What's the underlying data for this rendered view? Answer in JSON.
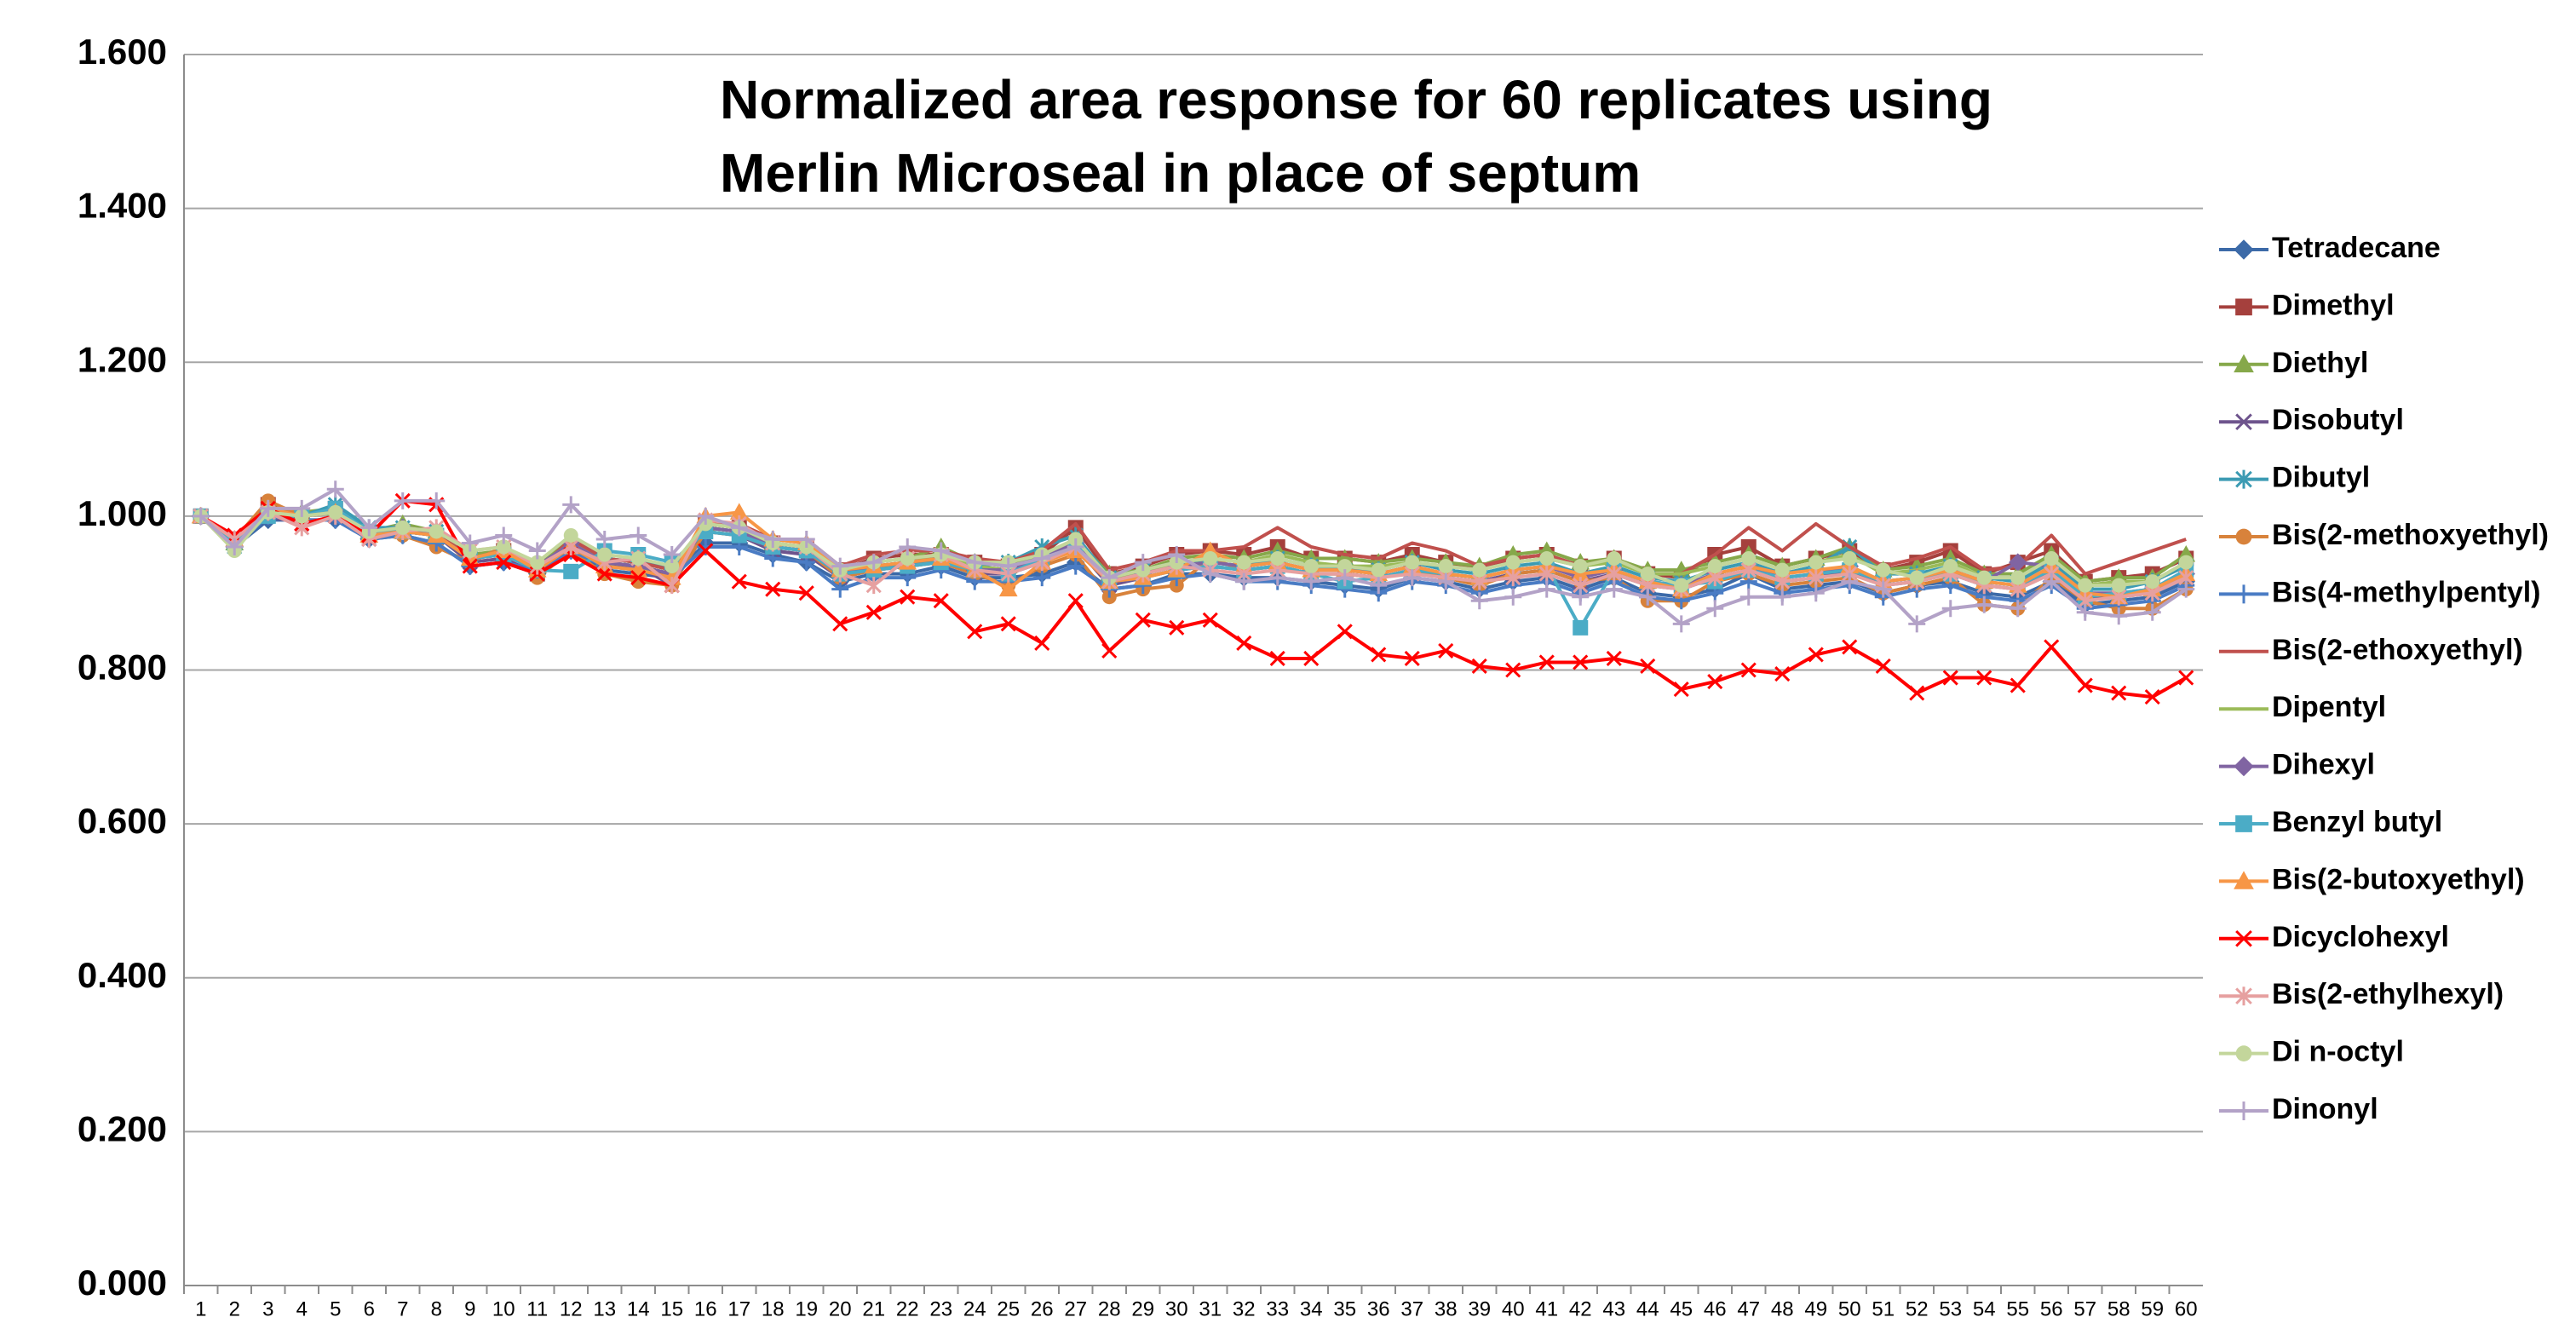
{
  "chart_data": {
    "type": "line",
    "title": [
      "Normalized area response for 60 replicates using",
      "Merlin Microseal in place of septum"
    ],
    "categories": [
      "1",
      "2",
      "3",
      "4",
      "5",
      "6",
      "7",
      "8",
      "9",
      "10",
      "11",
      "12",
      "13",
      "14",
      "15",
      "16",
      "17",
      "18",
      "19",
      "20",
      "21",
      "22",
      "23",
      "24",
      "25",
      "26",
      "27",
      "28",
      "29",
      "30",
      "31",
      "32",
      "33",
      "34",
      "35",
      "36",
      "37",
      "38",
      "39",
      "40",
      "41",
      "42",
      "43",
      "44",
      "45",
      "46",
      "47",
      "48",
      "49",
      "50",
      "51",
      "52",
      "53",
      "54",
      "55",
      "56",
      "57",
      "58",
      "59",
      "60"
    ],
    "ylim": [
      0,
      1.6
    ],
    "yticks": [
      {
        "value": 0,
        "label": "0.000"
      },
      {
        "value": 0.2,
        "label": "0.200"
      },
      {
        "value": 0.4,
        "label": "0.400"
      },
      {
        "value": 0.6,
        "label": "0.600"
      },
      {
        "value": 0.8,
        "label": "0.800"
      },
      {
        "value": 1.0,
        "label": "1.000"
      },
      {
        "value": 1.2,
        "label": "1.200"
      },
      {
        "value": 1.4,
        "label": "1.400"
      },
      {
        "value": 1.6,
        "label": "1.600"
      }
    ],
    "grid": true,
    "legend": "right",
    "series": [
      {
        "name": "Tetradecane",
        "color": "#3c6aa8",
        "marker": "diamond",
        "values": [
          1.0,
          0.96,
          0.995,
          0.995,
          0.995,
          0.97,
          0.975,
          0.965,
          0.935,
          0.94,
          0.925,
          0.955,
          0.93,
          0.925,
          0.92,
          0.965,
          0.965,
          0.95,
          0.94,
          0.915,
          0.925,
          0.925,
          0.935,
          0.92,
          0.92,
          0.925,
          0.94,
          0.905,
          0.91,
          0.925,
          0.925,
          0.92,
          0.92,
          0.915,
          0.91,
          0.905,
          0.92,
          0.915,
          0.905,
          0.915,
          0.92,
          0.905,
          0.92,
          0.9,
          0.895,
          0.905,
          0.925,
          0.905,
          0.91,
          0.915,
          0.9,
          0.91,
          0.915,
          0.9,
          0.895,
          0.915,
          0.885,
          0.89,
          0.895,
          0.915
        ]
      },
      {
        "name": "Dimethyl",
        "color": "#a5403d",
        "marker": "square",
        "values": [
          1.0,
          0.97,
          1.015,
          1.0,
          1.01,
          0.975,
          0.98,
          0.975,
          0.945,
          0.955,
          0.925,
          0.96,
          0.94,
          0.935,
          0.92,
          0.99,
          0.985,
          0.965,
          0.96,
          0.93,
          0.945,
          0.95,
          0.95,
          0.94,
          0.935,
          0.95,
          0.985,
          0.925,
          0.935,
          0.95,
          0.955,
          0.95,
          0.96,
          0.945,
          0.945,
          0.94,
          0.95,
          0.94,
          0.93,
          0.945,
          0.95,
          0.935,
          0.945,
          0.925,
          0.92,
          0.95,
          0.96,
          0.935,
          0.945,
          0.955,
          0.93,
          0.94,
          0.955,
          0.925,
          0.94,
          0.955,
          0.915,
          0.92,
          0.925,
          0.945
        ]
      },
      {
        "name": "Diethyl",
        "color": "#86a84a",
        "marker": "triangle",
        "values": [
          1.0,
          0.965,
          1.01,
          1.005,
          1.01,
          0.98,
          0.99,
          0.98,
          0.95,
          0.955,
          0.935,
          0.97,
          0.945,
          0.94,
          0.93,
          0.99,
          0.985,
          0.965,
          0.96,
          0.93,
          0.94,
          0.945,
          0.96,
          0.94,
          0.935,
          0.95,
          0.97,
          0.925,
          0.93,
          0.945,
          0.95,
          0.945,
          0.955,
          0.945,
          0.945,
          0.94,
          0.945,
          0.94,
          0.935,
          0.95,
          0.955,
          0.94,
          0.945,
          0.93,
          0.93,
          0.94,
          0.95,
          0.935,
          0.945,
          0.96,
          0.93,
          0.935,
          0.945,
          0.925,
          0.925,
          0.95,
          0.915,
          0.92,
          0.92,
          0.95
        ]
      },
      {
        "name": "Disobutyl",
        "color": "#6e548d",
        "marker": "x",
        "values": [
          1.0,
          0.965,
          1.0,
          0.99,
          1.0,
          0.97,
          0.98,
          0.975,
          0.94,
          0.945,
          0.925,
          0.96,
          0.935,
          0.935,
          0.91,
          0.98,
          0.975,
          0.955,
          0.95,
          0.92,
          0.93,
          0.935,
          0.94,
          0.925,
          0.925,
          0.94,
          0.96,
          0.91,
          0.92,
          0.93,
          0.935,
          0.93,
          0.935,
          0.925,
          0.925,
          0.92,
          0.93,
          0.92,
          0.915,
          0.925,
          0.93,
          0.915,
          0.925,
          0.91,
          0.905,
          0.92,
          0.93,
          0.915,
          0.92,
          0.93,
          0.91,
          0.915,
          0.925,
          0.91,
          0.905,
          0.93,
          0.895,
          0.895,
          0.9,
          0.92
        ]
      },
      {
        "name": "Dibutyl",
        "color": "#3c9bb3",
        "marker": "star",
        "values": [
          1.0,
          0.96,
          1.005,
          1.0,
          1.015,
          0.985,
          0.985,
          0.98,
          0.945,
          0.95,
          0.935,
          0.96,
          0.945,
          0.94,
          0.935,
          0.985,
          0.98,
          0.96,
          0.955,
          0.925,
          0.935,
          0.935,
          0.945,
          0.935,
          0.94,
          0.96,
          0.975,
          0.92,
          0.93,
          0.94,
          0.94,
          0.935,
          0.945,
          0.935,
          0.93,
          0.93,
          0.94,
          0.93,
          0.925,
          0.935,
          0.94,
          0.925,
          0.935,
          0.92,
          0.915,
          0.93,
          0.94,
          0.925,
          0.935,
          0.96,
          0.925,
          0.925,
          0.935,
          0.92,
          0.915,
          0.94,
          0.905,
          0.905,
          0.915,
          0.935
        ]
      },
      {
        "name": "Bis(2-methoxyethyl)",
        "color": "#d8823b",
        "marker": "circle",
        "values": [
          1.0,
          0.97,
          1.02,
          1.0,
          1.005,
          0.975,
          0.975,
          0.96,
          0.94,
          0.96,
          0.92,
          0.955,
          0.925,
          0.915,
          0.91,
          0.98,
          0.975,
          0.96,
          0.955,
          0.92,
          0.93,
          0.935,
          0.94,
          0.925,
          0.91,
          0.935,
          0.95,
          0.895,
          0.905,
          0.91,
          0.945,
          0.93,
          0.935,
          0.925,
          0.925,
          0.92,
          0.93,
          0.92,
          0.91,
          0.925,
          0.93,
          0.915,
          0.92,
          0.89,
          0.89,
          0.915,
          0.925,
          0.91,
          0.915,
          0.92,
          0.9,
          0.91,
          0.92,
          0.885,
          0.88,
          0.92,
          0.89,
          0.88,
          0.88,
          0.905
        ]
      },
      {
        "name": "Bis(4-methylpentyl)",
        "color": "#4a7cc4",
        "marker": "plus",
        "values": [
          1.0,
          0.96,
          1.0,
          0.995,
          0.995,
          0.97,
          0.975,
          0.965,
          0.935,
          0.94,
          0.93,
          0.955,
          0.935,
          0.93,
          0.92,
          0.96,
          0.96,
          0.945,
          0.94,
          0.905,
          0.92,
          0.92,
          0.93,
          0.915,
          0.915,
          0.92,
          0.935,
          0.905,
          0.91,
          0.92,
          0.925,
          0.915,
          0.915,
          0.91,
          0.905,
          0.9,
          0.915,
          0.91,
          0.9,
          0.91,
          0.915,
          0.9,
          0.915,
          0.895,
          0.89,
          0.9,
          0.915,
          0.9,
          0.905,
          0.91,
          0.895,
          0.905,
          0.91,
          0.895,
          0.89,
          0.91,
          0.88,
          0.885,
          0.89,
          0.91
        ]
      },
      {
        "name": "Bis(2-ethoxyethyl)",
        "color": "#c0504d",
        "marker": "none",
        "values": [
          1.0,
          0.97,
          1.01,
          1.0,
          1.005,
          0.975,
          0.985,
          0.98,
          0.945,
          0.955,
          0.93,
          0.97,
          0.945,
          0.94,
          0.93,
          0.99,
          0.99,
          0.97,
          0.97,
          0.935,
          0.95,
          0.955,
          0.955,
          0.945,
          0.94,
          0.955,
          0.99,
          0.93,
          0.94,
          0.955,
          0.955,
          0.96,
          0.985,
          0.96,
          0.95,
          0.945,
          0.965,
          0.955,
          0.935,
          0.945,
          0.95,
          0.935,
          0.945,
          0.925,
          0.925,
          0.95,
          0.985,
          0.955,
          0.99,
          0.96,
          0.935,
          0.945,
          0.96,
          0.93,
          0.935,
          0.975,
          0.925,
          0.94,
          0.955,
          0.97
        ]
      },
      {
        "name": "Dipentyl",
        "color": "#9bbb59",
        "marker": "none",
        "values": [
          1.0,
          0.965,
          1.005,
          1.0,
          1.005,
          0.975,
          0.985,
          0.975,
          0.945,
          0.95,
          0.935,
          0.965,
          0.94,
          0.935,
          0.925,
          0.985,
          0.98,
          0.96,
          0.955,
          0.925,
          0.935,
          0.94,
          0.95,
          0.935,
          0.93,
          0.945,
          0.965,
          0.92,
          0.925,
          0.94,
          0.945,
          0.94,
          0.95,
          0.94,
          0.935,
          0.935,
          0.94,
          0.935,
          0.93,
          0.94,
          0.945,
          0.935,
          0.94,
          0.925,
          0.925,
          0.935,
          0.945,
          0.93,
          0.94,
          0.95,
          0.925,
          0.93,
          0.94,
          0.92,
          0.92,
          0.945,
          0.91,
          0.915,
          0.915,
          0.94
        ]
      },
      {
        "name": "Dihexyl",
        "color": "#8064a2",
        "marker": "diamond",
        "values": [
          1.0,
          0.965,
          1.005,
          1.0,
          1.005,
          0.975,
          0.985,
          0.975,
          0.945,
          0.95,
          0.935,
          0.965,
          0.94,
          0.935,
          0.925,
          0.985,
          0.98,
          0.96,
          0.955,
          0.925,
          0.935,
          0.94,
          0.945,
          0.93,
          0.93,
          0.945,
          0.965,
          0.915,
          0.925,
          0.935,
          0.94,
          0.935,
          0.94,
          0.93,
          0.93,
          0.925,
          0.935,
          0.925,
          0.92,
          0.93,
          0.935,
          0.92,
          0.93,
          0.915,
          0.91,
          0.925,
          0.935,
          0.92,
          0.925,
          0.935,
          0.915,
          0.92,
          0.93,
          0.915,
          0.94,
          0.935,
          0.9,
          0.9,
          0.905,
          0.925
        ]
      },
      {
        "name": "Benzyl butyl",
        "color": "#4bacc6",
        "marker": "square",
        "values": [
          1.0,
          0.965,
          1.0,
          1.0,
          1.01,
          0.98,
          0.98,
          0.975,
          0.945,
          0.95,
          0.93,
          0.928,
          0.955,
          0.95,
          0.94,
          0.98,
          0.975,
          0.96,
          0.955,
          0.925,
          0.93,
          0.935,
          0.94,
          0.93,
          0.925,
          0.945,
          0.96,
          0.915,
          0.92,
          0.93,
          0.935,
          0.93,
          0.935,
          0.925,
          0.915,
          0.92,
          0.93,
          0.925,
          0.92,
          0.93,
          0.935,
          0.855,
          0.93,
          0.915,
          0.91,
          0.915,
          0.93,
          0.92,
          0.925,
          0.93,
          0.915,
          0.92,
          0.925,
          0.915,
          0.91,
          0.93,
          0.895,
          0.9,
          0.905,
          0.93
        ]
      },
      {
        "name": "Bis(2-butoxyethyl)",
        "color": "#f79646",
        "marker": "triangle",
        "values": [
          1.0,
          0.97,
          1.01,
          1.0,
          1.005,
          0.975,
          0.98,
          0.975,
          0.945,
          0.955,
          0.93,
          0.96,
          0.935,
          0.93,
          0.92,
          1.0,
          1.005,
          0.97,
          0.965,
          0.93,
          0.935,
          0.94,
          0.945,
          0.93,
          0.905,
          0.94,
          0.955,
          0.915,
          0.92,
          0.93,
          0.955,
          0.935,
          0.94,
          0.93,
          0.93,
          0.925,
          0.935,
          0.925,
          0.92,
          0.93,
          0.935,
          0.925,
          0.93,
          0.915,
          0.905,
          0.925,
          0.935,
          0.925,
          0.93,
          0.935,
          0.915,
          0.92,
          0.93,
          0.915,
          0.91,
          0.935,
          0.9,
          0.895,
          0.905,
          0.925
        ]
      },
      {
        "name": "Dicyclohexyl",
        "color": "#ff0000",
        "marker": "x",
        "values": [
          1.0,
          0.975,
          1.01,
          0.99,
          1.0,
          0.975,
          1.02,
          1.015,
          0.935,
          0.94,
          0.925,
          0.95,
          0.925,
          0.92,
          0.91,
          0.955,
          0.915,
          0.905,
          0.9,
          0.86,
          0.875,
          0.895,
          0.89,
          0.85,
          0.86,
          0.835,
          0.89,
          0.825,
          0.865,
          0.855,
          0.865,
          0.835,
          0.815,
          0.815,
          0.85,
          0.82,
          0.815,
          0.825,
          0.805,
          0.8,
          0.81,
          0.81,
          0.815,
          0.805,
          0.775,
          0.785,
          0.8,
          0.795,
          0.82,
          0.83,
          0.805,
          0.77,
          0.79,
          0.79,
          0.78,
          0.83,
          0.78,
          0.77,
          0.765,
          0.79
        ]
      },
      {
        "name": "Bis(2-ethylhexyl)",
        "color": "#e6a0a0",
        "marker": "star",
        "values": [
          1.0,
          0.97,
          1.005,
          0.985,
          1.0,
          0.97,
          0.98,
          0.985,
          0.955,
          0.96,
          0.935,
          0.96,
          0.94,
          0.945,
          0.91,
          0.995,
          0.99,
          0.965,
          0.96,
          0.925,
          0.91,
          0.945,
          0.95,
          0.93,
          0.925,
          0.94,
          0.96,
          0.915,
          0.925,
          0.935,
          0.93,
          0.925,
          0.93,
          0.925,
          0.925,
          0.92,
          0.925,
          0.92,
          0.915,
          0.92,
          0.925,
          0.91,
          0.925,
          0.91,
          0.905,
          0.92,
          0.93,
          0.915,
          0.92,
          0.925,
          0.91,
          0.915,
          0.925,
          0.91,
          0.905,
          0.925,
          0.89,
          0.895,
          0.9,
          0.92
        ]
      },
      {
        "name": "Di n-octyl",
        "color": "#c3d69b",
        "marker": "circle",
        "values": [
          1.0,
          0.955,
          1.005,
          1.0,
          1.005,
          0.98,
          0.985,
          0.98,
          0.955,
          0.96,
          0.94,
          0.975,
          0.95,
          0.945,
          0.935,
          0.99,
          0.985,
          0.965,
          0.96,
          0.93,
          0.94,
          0.945,
          0.95,
          0.94,
          0.94,
          0.95,
          0.97,
          0.92,
          0.93,
          0.94,
          0.945,
          0.94,
          0.945,
          0.935,
          0.935,
          0.93,
          0.94,
          0.935,
          0.93,
          0.94,
          0.945,
          0.935,
          0.945,
          0.925,
          0.91,
          0.935,
          0.945,
          0.93,
          0.94,
          0.945,
          0.93,
          0.92,
          0.935,
          0.92,
          0.92,
          0.945,
          0.91,
          0.91,
          0.915,
          0.94
        ]
      },
      {
        "name": "Dinonyl",
        "color": "#b3a2c7",
        "marker": "plus",
        "values": [
          1.0,
          0.96,
          1.01,
          1.01,
          1.035,
          0.985,
          1.02,
          1.02,
          0.965,
          0.975,
          0.955,
          1.015,
          0.97,
          0.975,
          0.95,
          1.0,
          0.985,
          0.97,
          0.97,
          0.935,
          0.94,
          0.96,
          0.955,
          0.94,
          0.935,
          0.945,
          0.96,
          0.92,
          0.94,
          0.95,
          0.925,
          0.915,
          0.92,
          0.915,
          0.92,
          0.91,
          0.92,
          0.915,
          0.89,
          0.895,
          0.905,
          0.895,
          0.905,
          0.895,
          0.86,
          0.88,
          0.895,
          0.895,
          0.9,
          0.915,
          0.905,
          0.86,
          0.88,
          0.885,
          0.88,
          0.915,
          0.875,
          0.87,
          0.875,
          0.905
        ]
      }
    ]
  }
}
